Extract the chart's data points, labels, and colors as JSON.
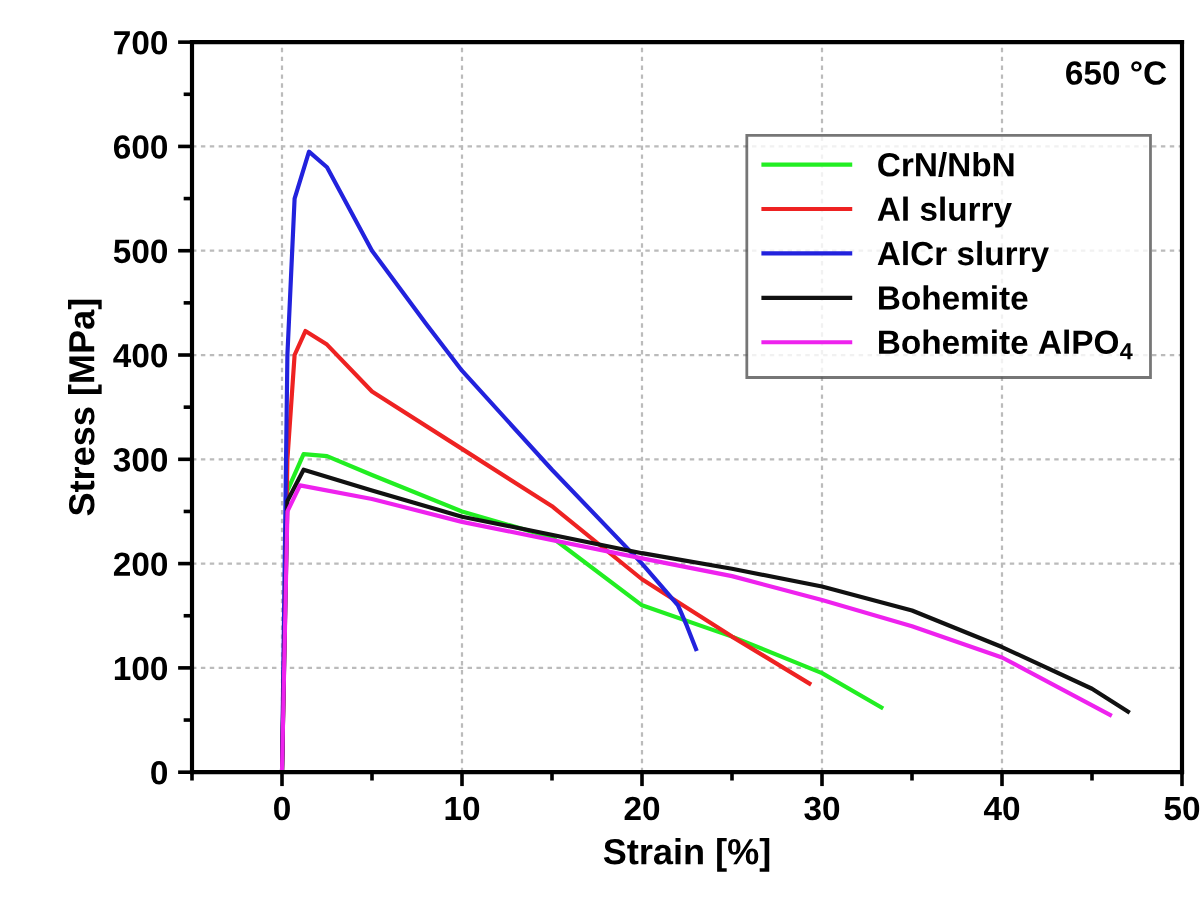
{
  "chart_data": {
    "type": "line",
    "xlabel": "Strain [%]",
    "ylabel": "Stress [MPa]",
    "xlim": [
      -5,
      50
    ],
    "xticks": [
      0,
      10,
      20,
      30,
      40,
      50
    ],
    "ylim": [
      0,
      700
    ],
    "yticks": [
      0,
      100,
      200,
      300,
      400,
      500,
      600,
      700
    ],
    "grid": true,
    "legend": "top right",
    "marker": "none",
    "line_style": "solid",
    "annotations": [
      "650 °C"
    ],
    "series": [
      {
        "name": "CrN/NbN",
        "color": "#22ee22",
        "x": [
          0,
          0.3,
          1.2,
          2.5,
          5,
          10,
          15,
          20,
          25,
          30,
          33.3
        ],
        "values": [
          0,
          270,
          305,
          303,
          285,
          250,
          225,
          160,
          130,
          95,
          62
        ]
      },
      {
        "name": "Al slurry",
        "color": "#ee2222",
        "x": [
          0,
          0.3,
          0.7,
          1.3,
          2.5,
          5,
          10,
          15,
          20,
          25,
          29.3
        ],
        "values": [
          0,
          300,
          400,
          423,
          410,
          365,
          310,
          255,
          185,
          130,
          85
        ]
      },
      {
        "name": "AlCr slurry",
        "color": "#2222dd",
        "x": [
          0,
          0.3,
          0.7,
          1.5,
          2.5,
          5,
          8,
          10,
          15,
          20,
          22,
          22.5,
          23
        ],
        "values": [
          0,
          400,
          550,
          595,
          580,
          500,
          430,
          385,
          290,
          200,
          160,
          140,
          118
        ]
      },
      {
        "name": "Bohemite",
        "color": "#111111",
        "x": [
          0,
          0.3,
          1.2,
          5,
          10,
          20,
          25,
          30,
          35,
          40,
          45,
          47
        ],
        "values": [
          0,
          260,
          290,
          270,
          245,
          210,
          195,
          178,
          155,
          120,
          80,
          58
        ]
      },
      {
        "name": "Bohemite AlPO$_{4}$",
        "color": "#ee22ee",
        "x": [
          0,
          0.3,
          1,
          5,
          10,
          20,
          25,
          30,
          35,
          40,
          46
        ],
        "values": [
          0,
          250,
          275,
          262,
          240,
          205,
          188,
          165,
          140,
          110,
          55
        ]
      }
    ]
  }
}
